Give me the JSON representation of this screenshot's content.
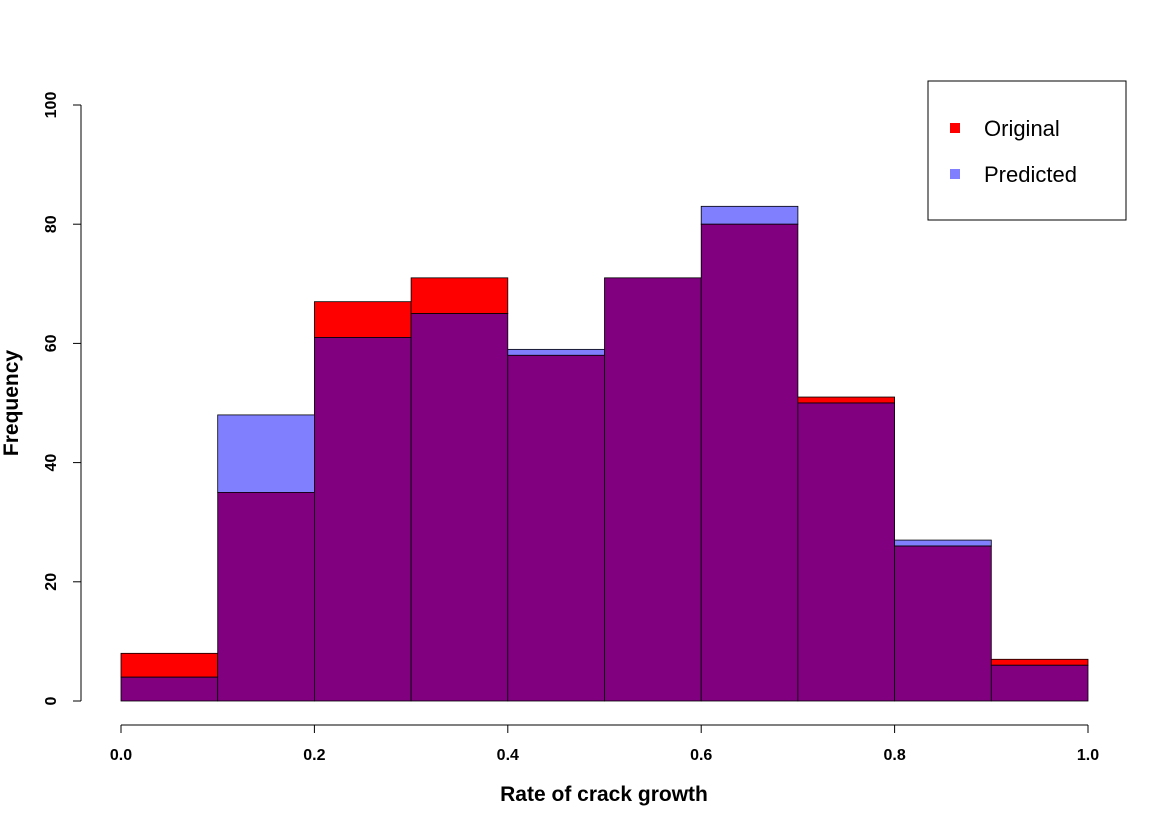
{
  "chart_data": {
    "type": "histogram-overlay",
    "title": "",
    "xlabel": "Rate of crack growth",
    "ylabel": "Frequency",
    "xlim": [
      0,
      1
    ],
    "ylim": [
      0,
      100
    ],
    "bin_edges": [
      0.0,
      0.1,
      0.2,
      0.3,
      0.4,
      0.5,
      0.6,
      0.7,
      0.8,
      0.9,
      1.0
    ],
    "x_ticks": [
      0.0,
      0.2,
      0.4,
      0.6,
      0.8,
      1.0
    ],
    "x_tick_labels": [
      "0.0",
      "0.2",
      "0.4",
      "0.6",
      "0.8",
      "1.0"
    ],
    "y_ticks": [
      0,
      20,
      40,
      60,
      80,
      100
    ],
    "y_tick_labels": [
      "0",
      "20",
      "40",
      "60",
      "80",
      "100"
    ],
    "overlap_color": "#800080",
    "series": [
      {
        "name": "Original",
        "color": "#ff0000",
        "values": [
          8,
          35,
          67,
          71,
          58,
          71,
          80,
          51,
          26,
          7
        ]
      },
      {
        "name": "Predicted",
        "color": "#8080ff",
        "values": [
          4,
          48,
          61,
          65,
          59,
          71,
          83,
          50,
          27,
          6
        ]
      }
    ],
    "legend": {
      "position": "top-right",
      "entries": [
        {
          "label": "Original",
          "color": "#ff0000"
        },
        {
          "label": "Predicted",
          "color": "#8080ff"
        }
      ]
    }
  }
}
